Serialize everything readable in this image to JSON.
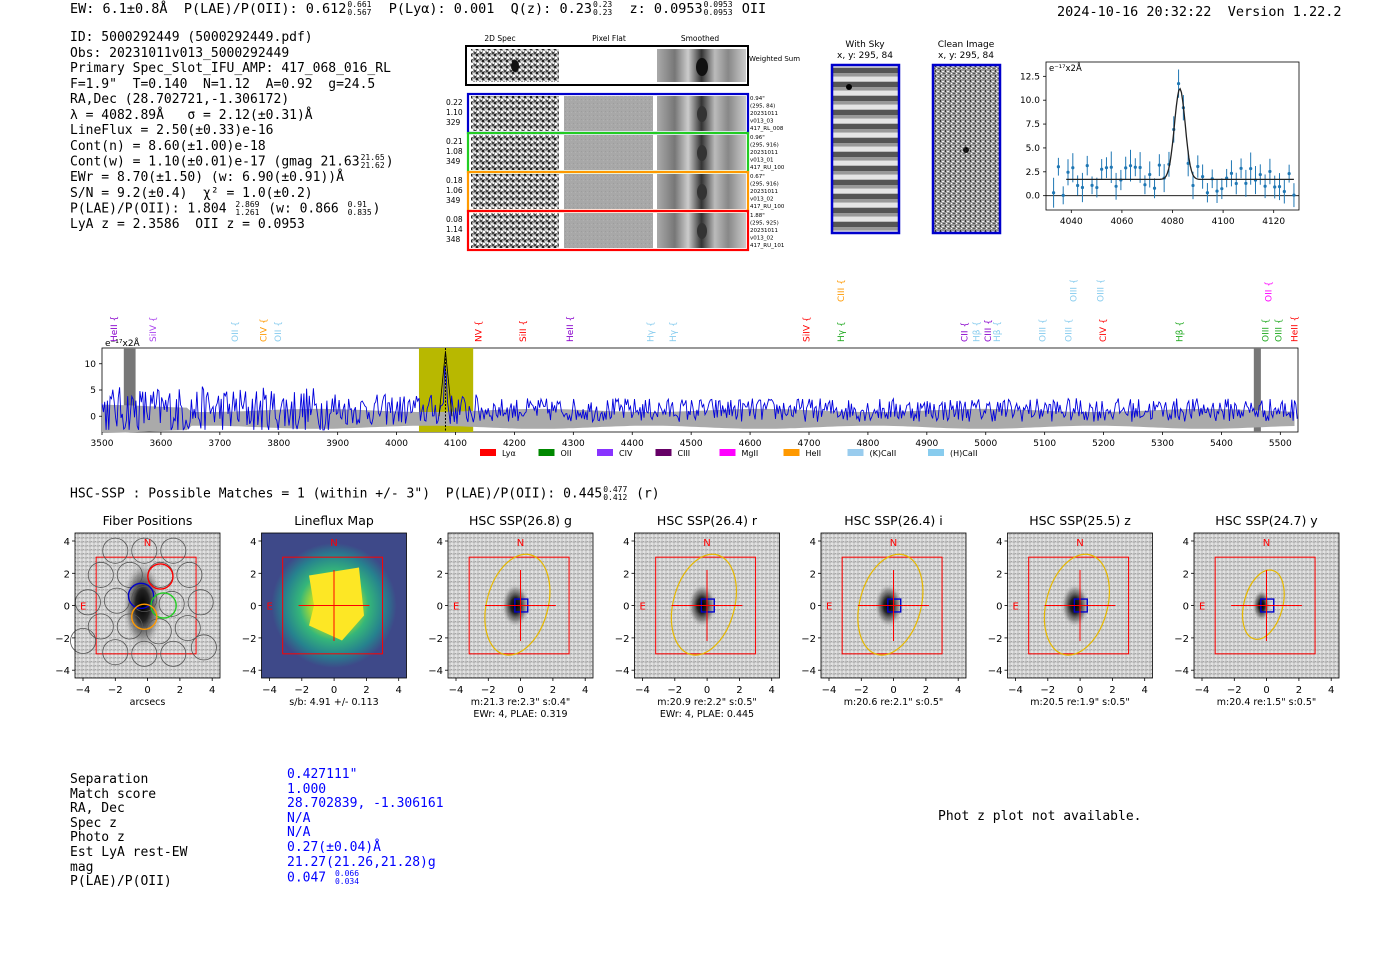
{
  "header": {
    "ew": "EW: 6.1±0.8Å",
    "plae_label": "P(LAE)/P(OII): 0.612",
    "plae_hi": "0.661",
    "plae_lo": "0.567",
    "plya": "P(Lyα): 0.001",
    "qz_label": "Q(z): 0.23",
    "qz_hi": "0.23",
    "qz_lo": "0.23",
    "z_label": "z: 0.0953",
    "z_hi": "0.0953",
    "z_lo": "0.0953",
    "z_line": "OII",
    "timestamp": "2024-10-16 20:32:22",
    "version": "Version 1.22.2"
  },
  "info": {
    "id": "ID: 5000292449 (5000292449.pdf)",
    "obs": "Obs: 20231011v013_5000292449",
    "primary": "Primary Spec_Slot_IFU_AMP: 417_068_016_RL",
    "fparams": "F=1.9\"  T=0.140  N=1.12  A=0.92  g=24.5",
    "radec": "RA,Dec (28.702721,-1.306172)",
    "lambda": "λ = 4082.89Å   σ = 2.12(±0.31)Å",
    "lineflux": "LineFlux = 2.50(±0.33)e-16",
    "contn": "Cont(n) = 8.60(±1.00)e-18",
    "contw": "Cont(w) = 1.10(±0.01)e-17 (gmag 21.63",
    "contw_hi": "21.65",
    "contw_lo": "21.62",
    "contw_end": ")",
    "ewr": "EWr = 8.70(±1.50) (w: 6.90(±0.91))Å",
    "sn": "S/N = 9.2(±0.4)  χ² = 1.0(±0.2)",
    "plae": "P(LAE)/P(OII): 1.804",
    "plae_hi": "2.869",
    "plae_lo": "1.261",
    "plae_w": "(w: 0.866",
    "plae_w_hi": "0.91",
    "plae_w_lo": "0.835",
    "plae_end": ")",
    "lyaz": "LyA z = 2.3586  OII z = 0.0953"
  },
  "spec2d": {
    "col_titles": [
      "2D Spec",
      "Pixel Flat",
      "Smoothed"
    ],
    "weighted_sum": "Weighted Sum",
    "rows": [
      {
        "left": [
          "0.22",
          "1.10",
          "329"
        ],
        "right": [
          "0.94\"",
          "(295, 84)",
          "20231011",
          "v013_03",
          "417_RL_008"
        ],
        "color": "#0000cc"
      },
      {
        "left": [
          "0.21",
          "1.08",
          "349"
        ],
        "right": [
          "0.96\"",
          "(295, 916)",
          "20231011",
          "v013_01",
          "417_RU_100"
        ],
        "color": "#22cc22"
      },
      {
        "left": [
          "0.18",
          "1.06",
          "349"
        ],
        "right": [
          "0.67\"",
          "(295, 916)",
          "20231011",
          "v013_02",
          "417_RU_100"
        ],
        "color": "#ff9900"
      },
      {
        "left": [
          "0.08",
          "1.14",
          "348"
        ],
        "right": [
          "1.88\"",
          "(295, 925)",
          "20231011",
          "v013_02",
          "417_RU_101"
        ],
        "color": "#ff0000"
      }
    ]
  },
  "cutouts": {
    "with_sky_title": "With Sky",
    "with_sky_xy": "x, y: 295, 84",
    "clean_title": "Clean Image",
    "clean_xy": "x, y: 295, 84"
  },
  "zoom_plot": {
    "units": "e⁻¹⁷x2Å",
    "yticks": [
      "12.5",
      "10.0",
      "7.5",
      "5.0",
      "2.5",
      "0.0"
    ],
    "xticks": [
      "4040",
      "4060",
      "4080",
      "4100",
      "4120"
    ]
  },
  "full_spec": {
    "units": "e⁻¹⁷x2Å",
    "yticks": [
      "10",
      "5",
      "0"
    ],
    "xticks": [
      "3500",
      "3600",
      "3700",
      "3800",
      "3900",
      "4000",
      "4100",
      "4200",
      "4300",
      "4400",
      "4500",
      "4600",
      "4700",
      "4800",
      "4900",
      "5000",
      "5100",
      "5200",
      "5300",
      "5400",
      "5500"
    ],
    "lines": [
      {
        "label": "HeII",
        "wl": 3521,
        "color": "#8800cc",
        "row": 0
      },
      {
        "label": "SiIV",
        "wl": 3587,
        "color": "#aa44ee",
        "row": 0
      },
      {
        "label": "OII",
        "wl": 3727,
        "color": "#88ccee",
        "row": 0
      },
      {
        "label": "CIV",
        "wl": 3775,
        "color": "#ff9900",
        "row": 0
      },
      {
        "label": "OII",
        "wl": 3800,
        "color": "#88ccee",
        "row": 0
      },
      {
        "label": "NV",
        "wl": 4140,
        "color": "#ff0000",
        "row": 0
      },
      {
        "label": "SiII",
        "wl": 4215,
        "color": "#ff0000",
        "row": 0
      },
      {
        "label": "HeII",
        "wl": 4295,
        "color": "#8800cc",
        "row": 0
      },
      {
        "label": "Hγ",
        "wl": 4432,
        "color": "#88ccee",
        "row": 0
      },
      {
        "label": "Hγ",
        "wl": 4470,
        "color": "#88ccee",
        "row": 0
      },
      {
        "label": "SiIV",
        "wl": 4697,
        "color": "#ff0000",
        "row": 0
      },
      {
        "label": "Hγ",
        "wl": 4755,
        "color": "#22aa22",
        "row": 0
      },
      {
        "label": "CIII",
        "wl": 4755,
        "color": "#ff9900",
        "row": 1
      },
      {
        "label": "CII",
        "wl": 4965,
        "color": "#8800cc",
        "row": 0
      },
      {
        "label": "Hβ",
        "wl": 4985,
        "color": "#88ccee",
        "row": 0
      },
      {
        "label": "CIII",
        "wl": 5005,
        "color": "#8800cc",
        "row": 0
      },
      {
        "label": "Hβ",
        "wl": 5020,
        "color": "#88ccee",
        "row": 0
      },
      {
        "label": "OIII",
        "wl": 5097,
        "color": "#88ccee",
        "row": 0
      },
      {
        "label": "OIII",
        "wl": 5141,
        "color": "#88ccee",
        "row": 0
      },
      {
        "label": "CIV",
        "wl": 5200,
        "color": "#ff0000",
        "row": 0
      },
      {
        "label": "OIII",
        "wl": 5150,
        "color": "#88ccee",
        "row": 1
      },
      {
        "label": "OIII",
        "wl": 5196,
        "color": "#88ccee",
        "row": 1
      },
      {
        "label": "Hβ",
        "wl": 5330,
        "color": "#22aa22",
        "row": 0
      },
      {
        "label": "OIII",
        "wl": 5476,
        "color": "#22aa22",
        "row": 0
      },
      {
        "label": "OII",
        "wl": 5481,
        "color": "#ff00ff",
        "row": 1
      },
      {
        "label": "OIII",
        "wl": 5498,
        "color": "#22aa22",
        "row": 0
      },
      {
        "label": "HeII",
        "wl": 5525,
        "color": "#ff0000",
        "row": 0
      }
    ],
    "legend": [
      {
        "label": "Lyα",
        "color": "#ff0000"
      },
      {
        "label": "OII",
        "color": "#008800"
      },
      {
        "label": "CIV",
        "color": "#8833ff"
      },
      {
        "label": "CIII",
        "color": "#660066"
      },
      {
        "label": "MgII",
        "color": "#ff00ff"
      },
      {
        "label": "HeII",
        "color": "#ff9900"
      },
      {
        "label": "(K)CaII",
        "color": "#99ccee"
      },
      {
        "label": "(H)CaII",
        "color": "#88ccee"
      }
    ]
  },
  "hsc": {
    "title": "HSC-SSP : Possible Matches = 1 (within +/- 3\")",
    "plae_label": "P(LAE)/P(OII): 0.445",
    "plae_hi": "0.477",
    "plae_lo": "0.412",
    "band": "(r)",
    "panels": [
      {
        "title": "Fiber Positions",
        "caption": "arcsecs",
        "caption2": ""
      },
      {
        "title": "Lineflux Map",
        "caption": "s/b: 4.91 +/- 0.113",
        "caption2": ""
      },
      {
        "title": "HSC SSP(26.8) g",
        "caption": "m:21.3  re:2.3\"  s:0.4\"",
        "caption2": "EWr: 4, PLAE: 0.319"
      },
      {
        "title": "HSC SSP(26.4) r",
        "caption": "m:20.9  re:2.2\"  s:0.5\"",
        "caption2": "EWr: 4, PLAE: 0.445"
      },
      {
        "title": "HSC SSP(26.4) i",
        "caption": "m:20.6  re:2.1\"  s:0.5\"",
        "caption2": ""
      },
      {
        "title": "HSC SSP(25.5) z",
        "caption": "m:20.5  re:1.9\"  s:0.5\"",
        "caption2": ""
      },
      {
        "title": "HSC SSP(24.7) y",
        "caption": "m:20.4  re:1.5\"  s:0.5\"",
        "caption2": ""
      }
    ],
    "yticks": [
      "4",
      "2",
      "0",
      "−2",
      "−4"
    ],
    "xticks": [
      "−4",
      "−2",
      "0",
      "2",
      "4"
    ],
    "north": "N",
    "east": "E"
  },
  "match": {
    "labels": [
      "Separation",
      "Match score",
      "RA, Dec",
      "Spec z",
      "Photo z",
      "Est LyA rest-EW",
      "mag",
      "P(LAE)/P(OII)"
    ],
    "values": [
      "0.427111\"",
      "1.000",
      "28.702839, -1.306161",
      "N/A",
      "N/A",
      "0.27(±0.04)Å",
      "21.27(21.26,21.28)g",
      "0.047"
    ],
    "plae_hi": "0.066",
    "plae_lo": "0.034",
    "photz_note": "Phot z plot not available."
  }
}
